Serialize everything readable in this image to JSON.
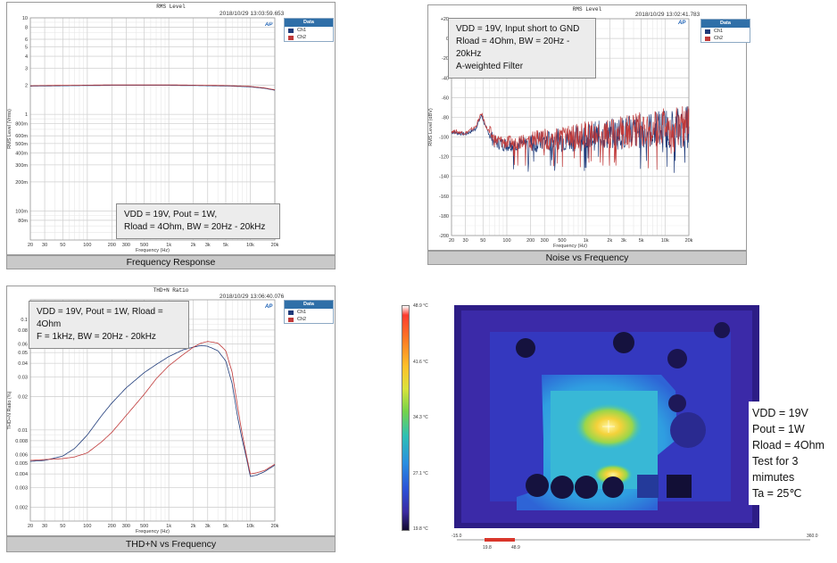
{
  "chart_data": [
    {
      "type": "line",
      "title": "RMS Level",
      "timestamp": "2018/10/29 13:03:59.653",
      "xlabel": "Frequency (Hz)",
      "ylabel": "RMS Level (Vrms)",
      "x_scale": "log",
      "y_scale": "log",
      "xlim": [
        20,
        20000
      ],
      "ylim": [
        0.05,
        10
      ],
      "x_ticks": [
        "20",
        "30",
        "50",
        "100",
        "200",
        "300",
        "500",
        "1k",
        "2k",
        "3k",
        "5k",
        "10k",
        "20k"
      ],
      "x_tick_values": [
        20,
        30,
        50,
        100,
        200,
        300,
        500,
        1000,
        2000,
        3000,
        5000,
        10000,
        20000
      ],
      "y_ticks": [
        "10",
        "8",
        "6",
        "5",
        "4",
        "3",
        "2",
        "1",
        "800m",
        "600m",
        "500m",
        "400m",
        "300m",
        "200m",
        "100m",
        "80m"
      ],
      "y_tick_values": [
        10,
        8,
        6,
        5,
        4,
        3,
        2,
        1,
        0.8,
        0.6,
        0.5,
        0.4,
        0.3,
        0.2,
        0.1,
        0.08
      ],
      "legend_title": "Data",
      "series": [
        {
          "name": "Ch1",
          "color": "#1f3b7a",
          "x": [
            20,
            30,
            50,
            100,
            200,
            500,
            1000,
            2000,
            5000,
            10000,
            15000,
            20000
          ],
          "values": [
            1.96,
            1.97,
            1.98,
            1.99,
            2.0,
            2.0,
            2.0,
            1.99,
            1.97,
            1.93,
            1.86,
            1.78
          ]
        },
        {
          "name": "Ch2",
          "color": "#c03a3a",
          "x": [
            20,
            30,
            50,
            100,
            200,
            500,
            1000,
            2000,
            5000,
            10000,
            15000,
            20000
          ],
          "values": [
            1.98,
            1.99,
            2.0,
            2.01,
            2.02,
            2.02,
            2.02,
            2.01,
            1.99,
            1.95,
            1.88,
            1.8
          ]
        }
      ],
      "note_lines": [
        "VDD = 19V, Pout = 1W,",
        "Rload = 4Ohm, BW = 20Hz - 20kHz"
      ],
      "caption": "Frequency Response"
    },
    {
      "type": "line",
      "title": "RMS Level",
      "timestamp": "2018/10/29 13:02:41.783",
      "xlabel": "Frequency (Hz)",
      "ylabel": "RMS Level (dBV)",
      "x_scale": "log",
      "xlim": [
        20,
        20000
      ],
      "ylim": [
        -200,
        20
      ],
      "x_ticks": [
        "20",
        "30",
        "50",
        "100",
        "200",
        "300",
        "500",
        "1k",
        "2k",
        "3k",
        "5k",
        "10k",
        "20k"
      ],
      "x_tick_values": [
        20,
        30,
        50,
        100,
        200,
        300,
        500,
        1000,
        2000,
        3000,
        5000,
        10000,
        20000
      ],
      "y_ticks": [
        "+20",
        "0",
        "-20",
        "-40",
        "-60",
        "-80",
        "-100",
        "-120",
        "-140",
        "-160",
        "-180",
        "-200"
      ],
      "y_tick_values": [
        20,
        0,
        -20,
        -40,
        -60,
        -80,
        -100,
        -120,
        -140,
        -160,
        -180,
        -200
      ],
      "legend_title": "Data",
      "series": [
        {
          "name": "Ch1",
          "color": "#1f3b7a",
          "noise_level_db": [
            [
              20,
              -95
            ],
            [
              30,
              -97
            ],
            [
              40,
              -92
            ],
            [
              48,
              -78
            ],
            [
              55,
              -92
            ],
            [
              70,
              -105
            ],
            [
              100,
              -108
            ],
            [
              200,
              -106
            ],
            [
              500,
              -103
            ],
            [
              1000,
              -100
            ],
            [
              2000,
              -97
            ],
            [
              5000,
              -94
            ],
            [
              10000,
              -91
            ],
            [
              20000,
              -90
            ]
          ]
        },
        {
          "name": "Ch2",
          "color": "#c03a3a",
          "noise_level_db": [
            [
              20,
              -94
            ],
            [
              30,
              -96
            ],
            [
              40,
              -90
            ],
            [
              48,
              -76
            ],
            [
              55,
              -90
            ],
            [
              70,
              -103
            ],
            [
              100,
              -106
            ],
            [
              200,
              -104
            ],
            [
              500,
              -101
            ],
            [
              1000,
              -98
            ],
            [
              2000,
              -96
            ],
            [
              5000,
              -93
            ],
            [
              10000,
              -90
            ],
            [
              20000,
              -89
            ]
          ]
        }
      ],
      "note_lines": [
        "VDD = 19V, Input short to GND",
        "Rload = 4Ohm, BW = 20Hz - 20kHz",
        "A-weighted Filter"
      ],
      "caption": "Noise vs Frequency"
    },
    {
      "type": "line",
      "title": "THD+N Ratio",
      "timestamp": "2018/10/29 13:06:40.076",
      "xlabel": "Frequency (Hz)",
      "ylabel": "THD+N Ratio (%)",
      "x_scale": "log",
      "y_scale": "log",
      "xlim": [
        20,
        20000
      ],
      "ylim": [
        0.0015,
        0.15
      ],
      "x_ticks": [
        "20",
        "30",
        "50",
        "100",
        "200",
        "300",
        "500",
        "1k",
        "2k",
        "3k",
        "5k",
        "10k",
        "20k"
      ],
      "x_tick_values": [
        20,
        30,
        50,
        100,
        200,
        300,
        500,
        1000,
        2000,
        3000,
        5000,
        10000,
        20000
      ],
      "y_ticks": [
        "0.1",
        "0.08",
        "0.06",
        "0.05",
        "0.04",
        "0.03",
        "0.02",
        "0.01",
        "0.008",
        "0.006",
        "0.005",
        "0.004",
        "0.003",
        "0.002"
      ],
      "y_tick_values": [
        0.1,
        0.08,
        0.06,
        0.05,
        0.04,
        0.03,
        0.02,
        0.01,
        0.008,
        0.006,
        0.005,
        0.004,
        0.003,
        0.002
      ],
      "legend_title": "Data",
      "series": [
        {
          "name": "Ch1",
          "color": "#1f3b7a",
          "x": [
            20,
            30,
            50,
            70,
            100,
            150,
            200,
            300,
            500,
            700,
            1000,
            1500,
            2000,
            2500,
            3000,
            4000,
            5000,
            6000,
            7000,
            8000,
            9000,
            10000,
            12000,
            15000,
            20000
          ],
          "values": [
            0.0052,
            0.0053,
            0.0058,
            0.0068,
            0.009,
            0.0135,
            0.0175,
            0.024,
            0.033,
            0.039,
            0.046,
            0.053,
            0.056,
            0.058,
            0.057,
            0.052,
            0.042,
            0.026,
            0.013,
            0.008,
            0.0055,
            0.0038,
            0.0039,
            0.0042,
            0.0048
          ]
        },
        {
          "name": "Ch2",
          "color": "#c03a3a",
          "x": [
            20,
            30,
            50,
            70,
            100,
            150,
            200,
            300,
            500,
            700,
            1000,
            1500,
            2000,
            2500,
            3000,
            4000,
            5000,
            6000,
            7000,
            8000,
            9000,
            10000,
            12000,
            15000,
            20000
          ],
          "values": [
            0.0053,
            0.0054,
            0.0055,
            0.0057,
            0.0062,
            0.0078,
            0.0095,
            0.0135,
            0.021,
            0.029,
            0.038,
            0.048,
            0.056,
            0.061,
            0.063,
            0.061,
            0.052,
            0.033,
            0.016,
            0.009,
            0.0058,
            0.004,
            0.0041,
            0.0043,
            0.0049
          ]
        }
      ],
      "note_lines": [
        "VDD = 19V, Pout = 1W, Rload = 4Ohm",
        "F = 1kHz, BW = 20Hz - 20kHz"
      ],
      "caption": "THD+N vs Frequency"
    },
    {
      "type": "heatmap",
      "colorbar_labels": [
        "48.9 °C",
        "41.6 °C",
        "34.3 °C",
        "27.1 °C",
        "19.8 °C"
      ],
      "scale_labels": [
        "-15.0",
        "19.8",
        "48.9",
        "360.0"
      ],
      "note_lines": [
        "VDD = 19V",
        "Pout = 1W",
        "Rload = 4Ohm",
        "Test for 3",
        "mimutes",
        "Ta = 25℃"
      ]
    }
  ]
}
